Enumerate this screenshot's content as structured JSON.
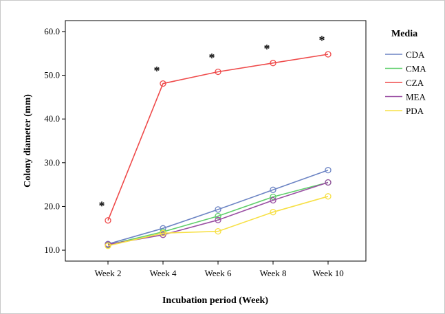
{
  "chart_data": {
    "type": "line",
    "xlabel": "Incubation period (Week)",
    "ylabel": "Colony diameter (mm)",
    "categories": [
      "Week 2",
      "Week 4",
      "Week 6",
      "Week 8",
      "Week 10"
    ],
    "ylim": [
      7.5,
      62.5
    ],
    "yticks": [
      "10.0",
      "20.0",
      "30.0",
      "40.0",
      "50.0",
      "60.0"
    ],
    "grid": false,
    "legend": {
      "title": "Media",
      "placement": "right"
    },
    "series": [
      {
        "name": "CDA",
        "color": "#6c84c4",
        "values": [
          11.4,
          15.0,
          19.3,
          23.8,
          28.3
        ]
      },
      {
        "name": "CMA",
        "color": "#5fcf6b",
        "values": [
          11.2,
          14.2,
          17.8,
          22.2,
          25.5
        ]
      },
      {
        "name": "CZA",
        "color": "#ef4a4a",
        "values": [
          16.8,
          48.1,
          50.8,
          52.8,
          54.8
        ]
      },
      {
        "name": "MEA",
        "color": "#9a4fa3",
        "values": [
          11.3,
          13.5,
          16.9,
          21.4,
          25.5
        ]
      },
      {
        "name": "PDA",
        "color": "#f7e045",
        "values": [
          11.0,
          13.9,
          14.3,
          18.7,
          22.3
        ]
      }
    ],
    "annotations": [
      {
        "text": "*",
        "x": "Week 2",
        "y": 20.6
      },
      {
        "text": "*",
        "x": "Week 4",
        "y": 51.5
      },
      {
        "text": "*",
        "x": "Week 6",
        "y": 54.5
      },
      {
        "text": "*",
        "x": "Week 8",
        "y": 56.5
      },
      {
        "text": "*",
        "x": "Week 10",
        "y": 58.5
      }
    ]
  }
}
